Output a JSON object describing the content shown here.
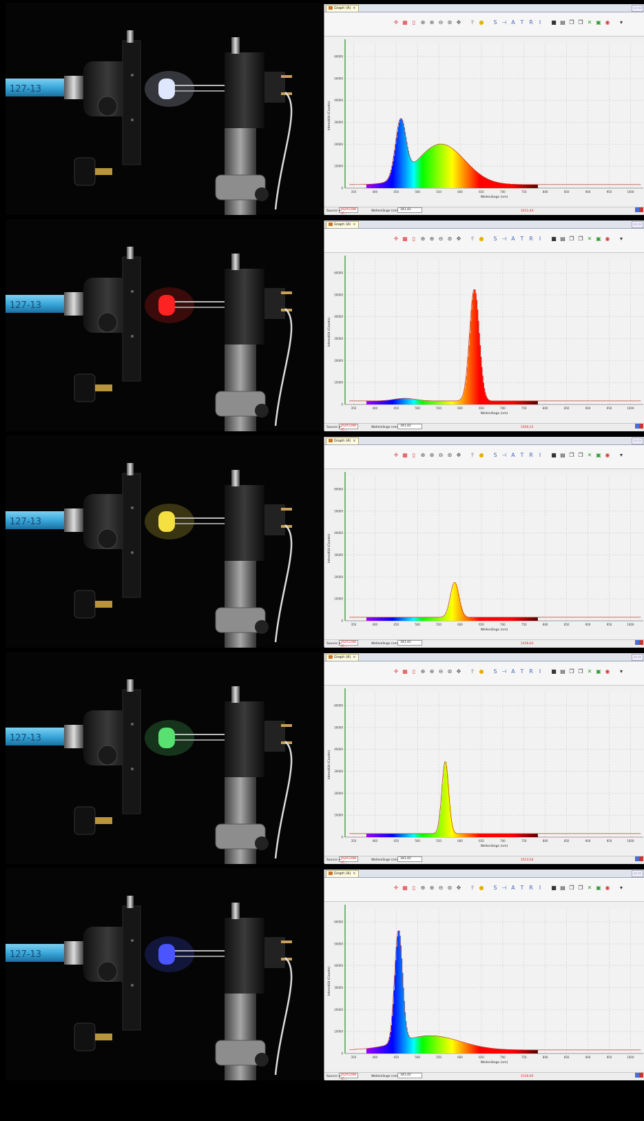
{
  "panels": [
    {
      "led": "white",
      "tab_title": "Graph (A)",
      "source": "JAZA1288 (C...",
      "wavelength_label": "Wellenlänge (nm):",
      "wavelength_value": "341,42",
      "readout": "1611,44",
      "y_ticks": [
        "0",
        "10000",
        "20000",
        "30000",
        "40000",
        "50000",
        "60000"
      ],
      "spectrum_peaks": [
        {
          "nm": 460,
          "counts": 26000,
          "width": 12
        },
        {
          "nm": 555,
          "counts": 18500,
          "width": 55
        }
      ]
    },
    {
      "led": "red",
      "tab_title": "Graph (A)",
      "source": "JAZA1288 (C...",
      "wavelength_label": "Wellenlänge (nm):",
      "wavelength_value": "341,42",
      "readout": "1600,22",
      "y_ticks": [
        "0",
        "10000",
        "20000",
        "30000",
        "40000",
        "50000",
        "60000"
      ],
      "spectrum_peaks": [
        {
          "nm": 633,
          "counts": 51000,
          "width": 11
        },
        {
          "nm": 470,
          "counts": 1200,
          "width": 25
        }
      ]
    },
    {
      "led": "yellow",
      "tab_title": "Graph (A)",
      "source": "JAZA1288 (C...",
      "wavelength_label": "Wellenlänge (nm):",
      "wavelength_value": "341,42",
      "readout": "1458,83",
      "y_ticks": [
        "0",
        "10000",
        "20000",
        "30000",
        "40000",
        "50000",
        "60000"
      ],
      "spectrum_peaks": [
        {
          "nm": 587,
          "counts": 16000,
          "width": 10
        }
      ]
    },
    {
      "led": "green",
      "tab_title": "Graph (A)",
      "source": "JAZA1288 (C...",
      "wavelength_label": "Wellenlänge (nm):",
      "wavelength_value": "341,42",
      "readout": "1613,64",
      "y_ticks": [
        "0",
        "10000",
        "20000",
        "30000",
        "40000",
        "50000",
        "60000"
      ],
      "spectrum_peaks": [
        {
          "nm": 565,
          "counts": 33000,
          "width": 8
        }
      ]
    },
    {
      "led": "blue",
      "tab_title": "Graph (A)",
      "source": "JAZA1288 (C...",
      "wavelength_label": "Wellenlänge (nm):",
      "wavelength_value": "341,42",
      "readout": "1530,85",
      "y_ticks": [
        "0",
        "10000",
        "20000",
        "30000",
        "40000",
        "50000",
        "60000"
      ],
      "spectrum_peaks": [
        {
          "nm": 455,
          "counts": 51000,
          "width": 9
        },
        {
          "nm": 530,
          "counts": 6500,
          "width": 70
        }
      ]
    }
  ],
  "x_ticks": [
    "350",
    "400",
    "450",
    "500",
    "550",
    "600",
    "650",
    "700",
    "750",
    "800",
    "850",
    "900",
    "950",
    "1000"
  ],
  "x_axis_label": "Wellenlänge (nm)",
  "y_axis_label": "Intensität (Counts)",
  "source_label": "Source:",
  "led_colors": {
    "white": "#dfe6ff",
    "red": "#ff2222",
    "yellow": "#f4e040",
    "green": "#58e070",
    "blue": "#4a55ff"
  },
  "toolbar_icons": [
    "crosshair-icon",
    "grid-icon",
    "trash-icon",
    "zoom-in-icon",
    "zoom-in-x-icon",
    "zoom-out-icon",
    "zoom-fit-icon",
    "pan-icon",
    "pin-icon",
    "bulb-icon",
    "S-icon",
    "split-icon",
    "A-icon",
    "T-icon",
    "R-icon",
    "I-icon",
    "save-icon",
    "print-icon",
    "copy-icon",
    "copy-data-icon",
    "excel-icon",
    "export-icon",
    "settings-icon",
    "dropdown-icon"
  ],
  "chart_data": [
    {
      "type": "line",
      "xlabel": "Wellenlänge (nm)",
      "ylabel": "Intensität (Counts)",
      "xlim": [
        330,
        1030
      ],
      "ylim": [
        0,
        66000
      ],
      "peaks": [
        {
          "x": 460,
          "y": 26000
        },
        {
          "x": 555,
          "y": 18500
        }
      ]
    },
    {
      "type": "line",
      "xlabel": "Wellenlänge (nm)",
      "ylabel": "Intensität (Counts)",
      "xlim": [
        330,
        1030
      ],
      "ylim": [
        0,
        66000
      ],
      "peaks": [
        {
          "x": 633,
          "y": 51000
        }
      ]
    },
    {
      "type": "line",
      "xlabel": "Wellenlänge (nm)",
      "ylabel": "Intensität (Counts)",
      "xlim": [
        330,
        1030
      ],
      "ylim": [
        0,
        66000
      ],
      "peaks": [
        {
          "x": 587,
          "y": 16000
        }
      ]
    },
    {
      "type": "line",
      "xlabel": "Wellenlänge (nm)",
      "ylabel": "Intensität (Counts)",
      "xlim": [
        330,
        1030
      ],
      "ylim": [
        0,
        66000
      ],
      "peaks": [
        {
          "x": 565,
          "y": 33000
        }
      ]
    },
    {
      "type": "line",
      "xlabel": "Wellenlänge (nm)",
      "ylabel": "Intensität (Counts)",
      "xlim": [
        330,
        1030
      ],
      "ylim": [
        0,
        66000
      ],
      "peaks": [
        {
          "x": 455,
          "y": 51000
        },
        {
          "x": 530,
          "y": 6500
        }
      ]
    }
  ]
}
